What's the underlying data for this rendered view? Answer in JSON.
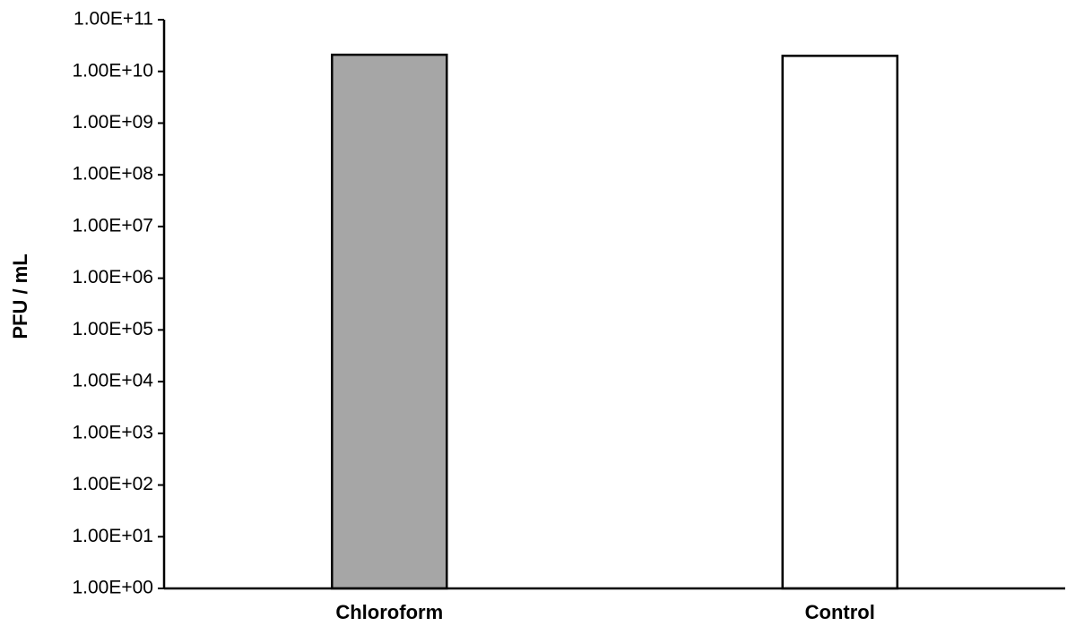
{
  "chart_data": {
    "type": "bar",
    "yscale": "log",
    "categories": [
      "Chloroform",
      "Control"
    ],
    "values": [
      21000000000.0,
      20000000000.0
    ],
    "bar_colors": [
      "#a6a6a6",
      "#ffffff"
    ],
    "bar_outline_color": "#000000",
    "ylabel": "PFU / mL",
    "ylim": [
      1,
      100000000000
    ],
    "yticks": [
      1,
      10,
      100,
      1000,
      10000,
      100000,
      1000000,
      10000000,
      100000000,
      1000000000,
      10000000000,
      100000000000
    ],
    "ytick_labels": [
      "1.00E+00",
      "1.00E+01",
      "1.00E+02",
      "1.00E+03",
      "1.00E+04",
      "1.00E+05",
      "1.00E+06",
      "1.00E+07",
      "1.00E+08",
      "1.00E+09",
      "1.00E+10",
      "1.00E+11"
    ],
    "grid": false,
    "legend": "none"
  }
}
